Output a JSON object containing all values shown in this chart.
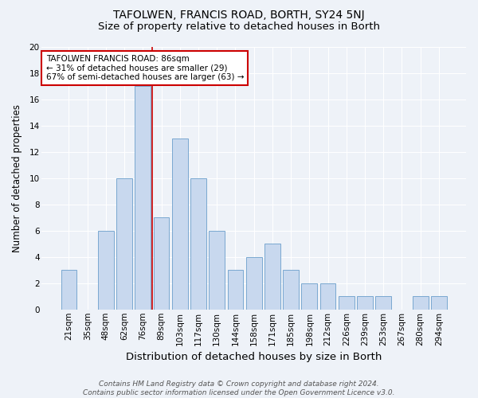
{
  "title": "TAFOLWEN, FRANCIS ROAD, BORTH, SY24 5NJ",
  "subtitle": "Size of property relative to detached houses in Borth",
  "xlabel": "Distribution of detached houses by size in Borth",
  "ylabel": "Number of detached properties",
  "categories": [
    "21sqm",
    "35sqm",
    "48sqm",
    "62sqm",
    "76sqm",
    "89sqm",
    "103sqm",
    "117sqm",
    "130sqm",
    "144sqm",
    "158sqm",
    "171sqm",
    "185sqm",
    "198sqm",
    "212sqm",
    "226sqm",
    "239sqm",
    "253sqm",
    "267sqm",
    "280sqm",
    "294sqm"
  ],
  "values": [
    3,
    0,
    6,
    10,
    17,
    7,
    13,
    10,
    6,
    3,
    4,
    5,
    3,
    2,
    2,
    1,
    1,
    1,
    0,
    1,
    1
  ],
  "bar_color": "#c8d8ee",
  "bar_edge_color": "#7aa8d0",
  "vline_color": "#cc0000",
  "vline_index": 5,
  "ylim": [
    0,
    20
  ],
  "yticks": [
    0,
    2,
    4,
    6,
    8,
    10,
    12,
    14,
    16,
    18,
    20
  ],
  "annotation_text": "TAFOLWEN FRANCIS ROAD: 86sqm\n← 31% of detached houses are smaller (29)\n67% of semi-detached houses are larger (63) →",
  "annotation_box_color": "#ffffff",
  "annotation_box_edge_color": "#cc0000",
  "footer_text": "Contains HM Land Registry data © Crown copyright and database right 2024.\nContains public sector information licensed under the Open Government Licence v3.0.",
  "bg_color": "#eef2f8",
  "grid_color": "#ffffff",
  "title_fontsize": 10,
  "subtitle_fontsize": 9.5,
  "xlabel_fontsize": 9.5,
  "ylabel_fontsize": 8.5,
  "tick_fontsize": 7.5,
  "annotation_fontsize": 7.5,
  "footer_fontsize": 6.5
}
